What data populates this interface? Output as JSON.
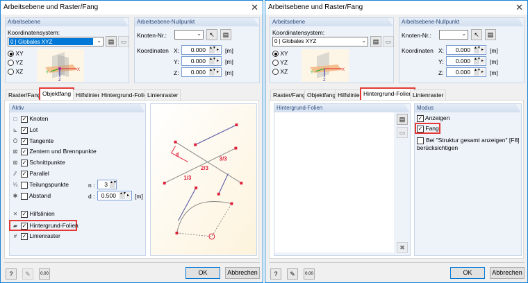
{
  "dialog_title": "Arbeitsebene und Raster/Fang",
  "arbeitsebene": {
    "header": "Arbeitsebene",
    "koordsys_label": "Koordinatensystem:",
    "koordsys_value": "0 | Globales XYZ",
    "planes": [
      "XY",
      "YZ",
      "XZ"
    ],
    "selected_plane": "XY",
    "axis_labels": {
      "x": "X",
      "y": "Y",
      "z": "Z"
    }
  },
  "nullpunkt": {
    "header": "Arbeitsebene-Nullpunkt",
    "knoten_label": "Knoten-Nr.:",
    "knoten_value": "",
    "koordinaten_label": "Koordinaten",
    "coords": [
      {
        "axis": "X:",
        "value": "0.000",
        "unit": "[m]"
      },
      {
        "axis": "Y:",
        "value": "0.000",
        "unit": "[m]"
      },
      {
        "axis": "Z:",
        "value": "0.000",
        "unit": "[m]"
      }
    ]
  },
  "tabs": [
    "Raster/Fang",
    "Objektfang",
    "Hilfslinien",
    "Hintergrund-Folien",
    "Linienraster"
  ],
  "left": {
    "active_tab": "Objektfang",
    "aktiv_header": "Aktiv",
    "items": [
      {
        "label": "Knoten",
        "checked": true,
        "icon": "node-icon"
      },
      {
        "label": "Lot",
        "checked": true,
        "icon": "perpendicular-icon"
      },
      {
        "label": "Tangente",
        "checked": true,
        "icon": "tangent-icon"
      },
      {
        "label": "Zentern und Brennpunkte",
        "checked": true,
        "icon": "center-icon"
      },
      {
        "label": "Schnittpunkte",
        "checked": true,
        "icon": "intersection-icon"
      },
      {
        "label": "Parallel",
        "checked": true,
        "icon": "parallel-icon"
      },
      {
        "label": "Teilungspunkte",
        "checked": false,
        "icon": "division-icon"
      },
      {
        "label": "Abstand",
        "checked": false,
        "icon": "distance-icon"
      },
      {
        "label": "Hilfslinien",
        "checked": true,
        "icon": "guideline-icon"
      },
      {
        "label": "Hintergrund-Folien",
        "checked": true,
        "icon": "layers-icon"
      },
      {
        "label": "Linienraster",
        "checked": true,
        "icon": "grid-icon"
      }
    ],
    "n_label": "n :",
    "n_value": "3",
    "d_label": "d :",
    "d_value": "0.500",
    "d_unit": "[m]",
    "preview_labels": {
      "d": "d",
      "third1": "1/3",
      "third2": "2/3",
      "third3": "3/3"
    }
  },
  "right": {
    "active_tab": "Hintergrund-Folien",
    "list_header": "Hintergrund-Folien",
    "modus_header": "Modus",
    "anzeigen": {
      "label": "Anzeigen",
      "checked": true
    },
    "fang": {
      "label": "Fang",
      "checked": true
    },
    "struktur": {
      "label": "Bei \"Struktur gesamt anzeigen\" [F8] berücksichtigen",
      "checked": false
    }
  },
  "buttons": {
    "ok": "OK",
    "cancel": "Abbrechen",
    "units_icon_text": "0.00"
  },
  "colors": {
    "highlight": "#e53935",
    "selection": "#0078d7",
    "snap_red": "#e0203a"
  }
}
